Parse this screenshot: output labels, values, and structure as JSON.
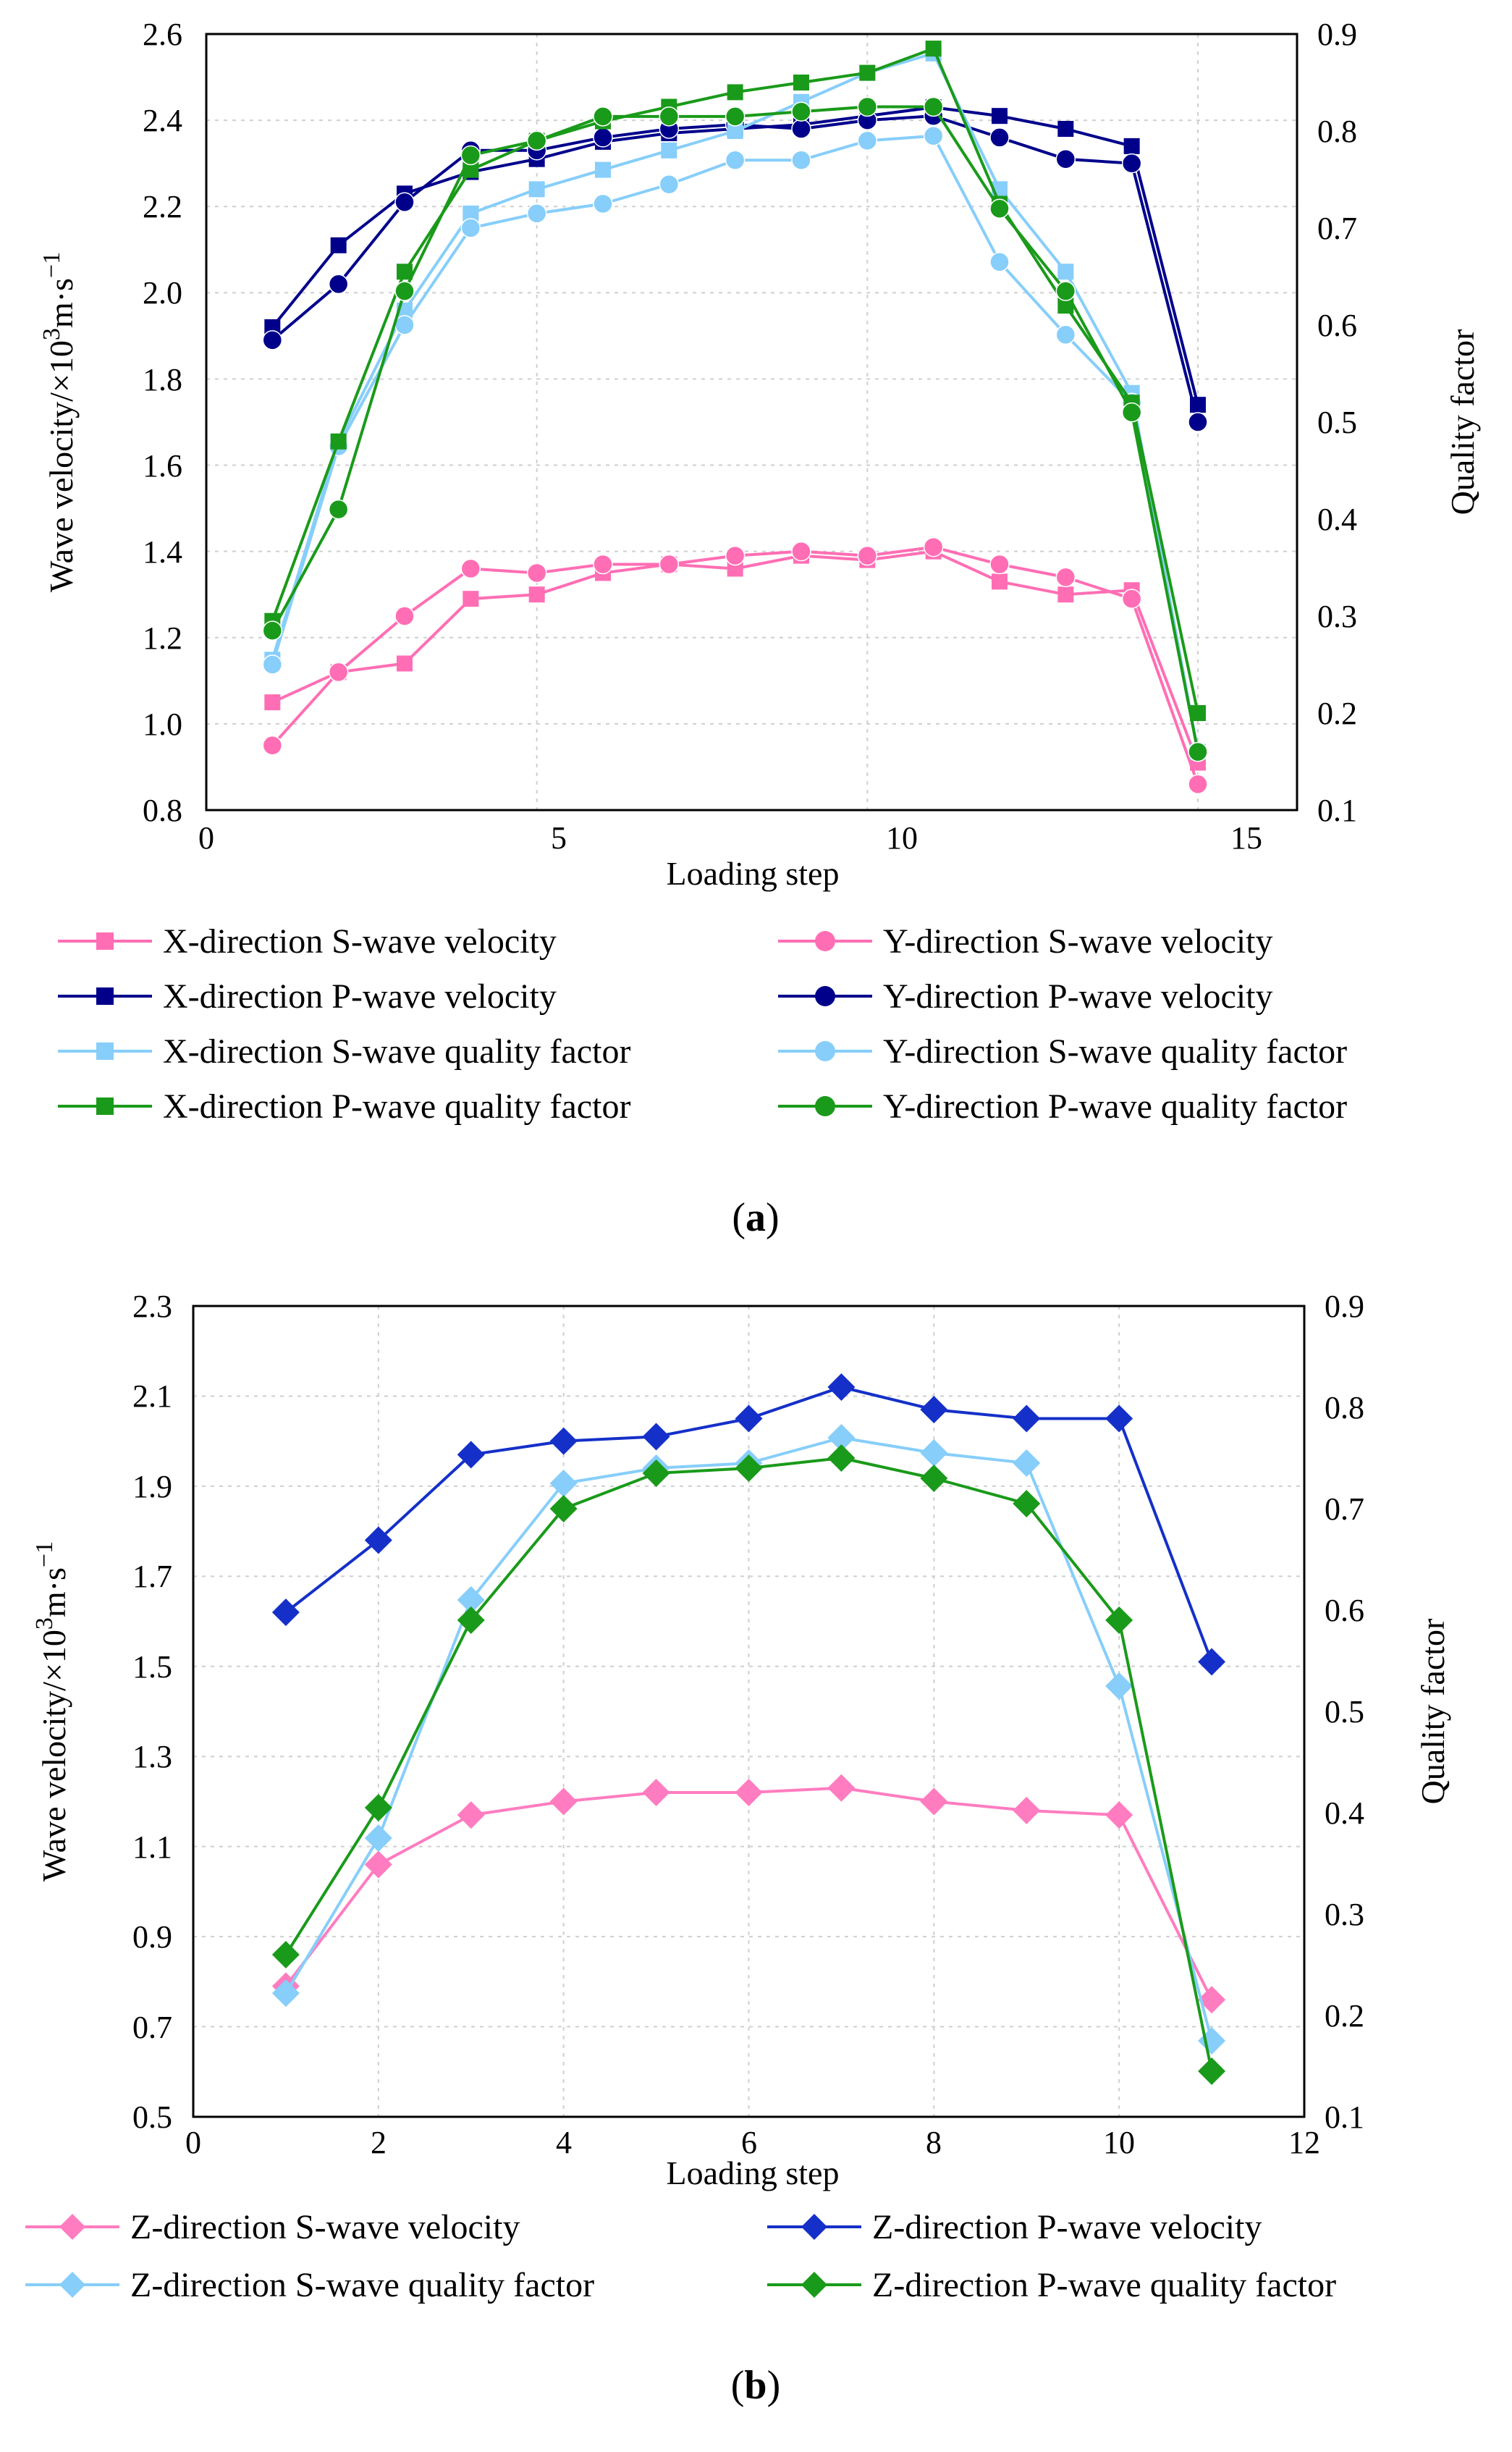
{
  "panels": [
    {
      "id": "a",
      "caption_open": "(",
      "caption_letter": "a",
      "caption_close": ")",
      "xlabel": "Loading step",
      "ylabel_prefix": "Wave velocity/×10",
      "ylabel_sup1": "3",
      "ylabel_mid": "m·s",
      "ylabel_sup2": "−1",
      "y2label": "Quality factor",
      "x_ticks": [
        "0",
        "5",
        "10",
        "15"
      ],
      "y_ticks": [
        "0.8",
        "1.0",
        "1.2",
        "1.4",
        "1.6",
        "1.8",
        "2.0",
        "2.2",
        "2.4",
        "2.6"
      ],
      "y2_ticks": [
        "0.1",
        "0.2",
        "0.3",
        "0.4",
        "0.5",
        "0.6",
        "0.7",
        "0.8",
        "0.9"
      ]
    },
    {
      "id": "b",
      "caption_open": "(",
      "caption_letter": "b",
      "caption_close": ")",
      "xlabel": "Loading step",
      "ylabel_prefix": "Wave velocity/×10",
      "ylabel_sup1": "3",
      "ylabel_mid": "m·s",
      "ylabel_sup2": "−1",
      "y2label": "Quality factor",
      "x_ticks": [
        "0",
        "2",
        "4",
        "6",
        "8",
        "10",
        "12"
      ],
      "y_ticks": [
        "0.5",
        "0.7",
        "0.9",
        "1.1",
        "1.3",
        "1.5",
        "1.7",
        "1.9",
        "2.1",
        "2.3"
      ],
      "y2_ticks": [
        "0.1",
        "0.2",
        "0.3",
        "0.4",
        "0.5",
        "0.6",
        "0.7",
        "0.8",
        "0.9"
      ]
    }
  ],
  "chart_data": [
    {
      "type": "line",
      "panel": "a",
      "xlabel": "Loading step",
      "ylabel": "Wave velocity/×10^3 m·s^−1",
      "y2label": "Quality factor",
      "xlim": [
        0,
        16.5
      ],
      "ylim": [
        0.8,
        2.6
      ],
      "y2lim": [
        0.1,
        0.9
      ],
      "grid": true,
      "x_grid": [
        5,
        10,
        15
      ],
      "y_grid": [
        1.0,
        1.2,
        1.4,
        1.6,
        1.8,
        2.0,
        2.2,
        2.4
      ],
      "series": [
        {
          "name": "X-direction S-wave velocity",
          "axis": "left",
          "marker": "square",
          "color": "#FF6EB4",
          "x": [
            1,
            2,
            3,
            4,
            5,
            6,
            7,
            8,
            9,
            10,
            11,
            12,
            13,
            14,
            15
          ],
          "values": [
            1.05,
            1.12,
            1.14,
            1.29,
            1.3,
            1.35,
            1.37,
            1.36,
            1.39,
            1.38,
            1.4,
            1.33,
            1.3,
            1.31,
            0.91
          ]
        },
        {
          "name": "Y-direction S-wave velocity",
          "axis": "left",
          "marker": "circle",
          "color": "#FF6EB4",
          "x": [
            1,
            2,
            3,
            4,
            5,
            6,
            7,
            8,
            9,
            10,
            11,
            12,
            13,
            14,
            15
          ],
          "values": [
            0.95,
            1.12,
            1.25,
            1.36,
            1.35,
            1.37,
            1.37,
            1.39,
            1.4,
            1.39,
            1.41,
            1.37,
            1.34,
            1.29,
            0.86
          ]
        },
        {
          "name": "X-direction P-wave velocity",
          "axis": "left",
          "marker": "square",
          "color": "#00008B",
          "x": [
            1,
            2,
            3,
            4,
            5,
            6,
            7,
            8,
            9,
            10,
            11,
            12,
            13,
            14,
            15
          ],
          "values": [
            1.92,
            2.11,
            2.23,
            2.28,
            2.31,
            2.35,
            2.37,
            2.38,
            2.39,
            2.41,
            2.43,
            2.41,
            2.38,
            2.34,
            1.74
          ]
        },
        {
          "name": "Y-direction P-wave velocity",
          "axis": "left",
          "marker": "circle",
          "color": "#00008B",
          "x": [
            1,
            2,
            3,
            4,
            5,
            6,
            7,
            8,
            9,
            10,
            11,
            12,
            13,
            14,
            15
          ],
          "values": [
            1.89,
            2.02,
            2.21,
            2.33,
            2.33,
            2.36,
            2.38,
            2.39,
            2.38,
            2.4,
            2.41,
            2.36,
            2.31,
            2.3,
            1.7
          ]
        },
        {
          "name": "X-direction S-wave quality factor",
          "axis": "right",
          "marker": "square",
          "color": "#87CEFA",
          "x": [
            1,
            2,
            3,
            4,
            5,
            6,
            7,
            8,
            9,
            10,
            11,
            12,
            13,
            14,
            15
          ],
          "values": [
            0.255,
            0.48,
            0.615,
            0.715,
            0.74,
            0.76,
            0.78,
            0.8,
            0.83,
            0.86,
            0.88,
            0.74,
            0.655,
            0.53,
            0.16
          ]
        },
        {
          "name": "Y-direction S-wave quality factor",
          "axis": "right",
          "marker": "circle",
          "color": "#87CEFA",
          "x": [
            1,
            2,
            3,
            4,
            5,
            6,
            7,
            8,
            9,
            10,
            11,
            12,
            13,
            14,
            15
          ],
          "values": [
            0.25,
            0.475,
            0.6,
            0.7,
            0.715,
            0.725,
            0.745,
            0.77,
            0.77,
            0.79,
            0.795,
            0.665,
            0.59,
            0.52,
            0.16
          ]
        },
        {
          "name": "X-direction P-wave quality factor",
          "axis": "right",
          "marker": "square",
          "color": "#1A9A1A",
          "x": [
            1,
            2,
            3,
            4,
            5,
            6,
            7,
            8,
            9,
            10,
            11,
            12,
            13,
            14,
            15
          ],
          "values": [
            0.295,
            0.48,
            0.655,
            0.76,
            0.79,
            0.81,
            0.825,
            0.84,
            0.85,
            0.86,
            0.885,
            0.725,
            0.62,
            0.52,
            0.2
          ]
        },
        {
          "name": "Y-direction P-wave quality factor",
          "axis": "right",
          "marker": "circle",
          "color": "#1A9A1A",
          "x": [
            1,
            2,
            3,
            4,
            5,
            6,
            7,
            8,
            9,
            10,
            11,
            12,
            13,
            14,
            15
          ],
          "values": [
            0.285,
            0.41,
            0.635,
            0.775,
            0.79,
            0.815,
            0.815,
            0.815,
            0.82,
            0.825,
            0.825,
            0.72,
            0.635,
            0.51,
            0.16
          ]
        }
      ]
    },
    {
      "type": "line",
      "panel": "b",
      "xlabel": "Loading step",
      "ylabel": "Wave velocity/×10^3 m·s^−1",
      "y2label": "Quality factor",
      "xlim": [
        0,
        12
      ],
      "ylim": [
        0.5,
        2.3
      ],
      "y2lim": [
        0.1,
        0.9
      ],
      "grid": true,
      "x_grid": [
        2,
        4,
        6,
        8,
        10
      ],
      "y_grid": [
        0.7,
        0.9,
        1.1,
        1.3,
        1.5,
        1.7,
        1.9,
        2.1
      ],
      "series": [
        {
          "name": "Z-direction S-wave velocity",
          "axis": "left",
          "marker": "diamond",
          "color": "#FF7CC0",
          "x": [
            1,
            2,
            3,
            4,
            5,
            6,
            7,
            8,
            9,
            10,
            11
          ],
          "values": [
            0.79,
            1.06,
            1.17,
            1.2,
            1.22,
            1.22,
            1.23,
            1.2,
            1.18,
            1.17,
            0.76
          ]
        },
        {
          "name": "Z-direction P-wave velocity",
          "axis": "left",
          "marker": "diamond",
          "color": "#1530C8",
          "x": [
            1,
            2,
            3,
            4,
            5,
            6,
            7,
            8,
            9,
            10,
            11
          ],
          "values": [
            1.62,
            1.78,
            1.97,
            2.0,
            2.01,
            2.05,
            2.12,
            2.07,
            2.05,
            2.05,
            1.51
          ]
        },
        {
          "name": "Z-direction S-wave quality factor",
          "axis": "right",
          "marker": "diamond",
          "color": "#87CEFA",
          "x": [
            1,
            2,
            3,
            4,
            5,
            6,
            7,
            8,
            9,
            10,
            11
          ],
          "values": [
            0.222,
            0.375,
            0.61,
            0.725,
            0.74,
            0.745,
            0.77,
            0.755,
            0.745,
            0.525,
            0.175
          ]
        },
        {
          "name": "Z-direction P-wave quality factor",
          "axis": "right",
          "marker": "diamond",
          "color": "#1A9A1A",
          "x": [
            1,
            2,
            3,
            4,
            5,
            6,
            7,
            8,
            9,
            10,
            11
          ],
          "values": [
            0.26,
            0.405,
            0.59,
            0.7,
            0.735,
            0.74,
            0.75,
            0.73,
            0.705,
            0.59,
            0.145
          ]
        }
      ]
    }
  ]
}
